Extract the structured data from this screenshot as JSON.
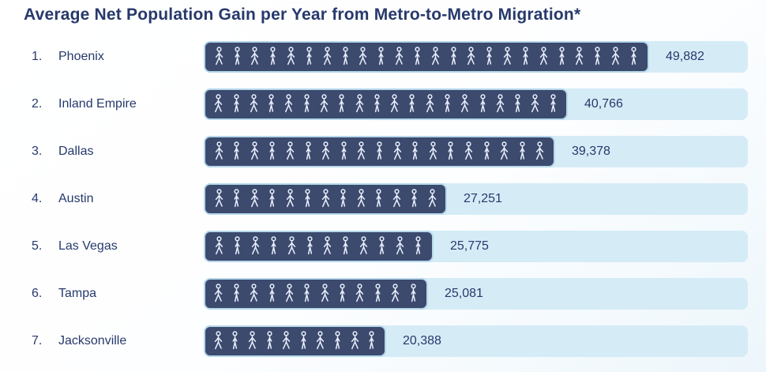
{
  "title": "Average Net Population Gain per Year from Metro-to-Metro Migration*",
  "chart_data": {
    "type": "bar",
    "subtype": "pictogram",
    "orientation": "horizontal",
    "title": "Average Net Population Gain per Year from Metro-to-Metro Migration*",
    "icon": "walking-person",
    "ranks": [
      "1.",
      "2.",
      "3.",
      "4.",
      "5.",
      "6.",
      "7."
    ],
    "categories": [
      "Phoenix",
      "Inland Empire",
      "Dallas",
      "Austin",
      "Las Vegas",
      "Tampa",
      "Jacksonville"
    ],
    "values": [
      49882,
      40766,
      39378,
      27251,
      25775,
      25081,
      20388
    ],
    "value_labels": [
      "49,882",
      "40,766",
      "39,378",
      "27,251",
      "25,775",
      "25,081",
      "20,388"
    ],
    "max_value": 49882,
    "xlabel": "",
    "ylabel": "",
    "legend": null,
    "grid": false,
    "colors": {
      "bar_fill": "#3c4a6e",
      "bar_border": "#b6d8ea",
      "track_fill": "#d5ecf7",
      "text": "#27396b",
      "icon_stroke": "#e9effb",
      "background_from": "#ffffff",
      "background_to": "#edf6fb"
    }
  }
}
